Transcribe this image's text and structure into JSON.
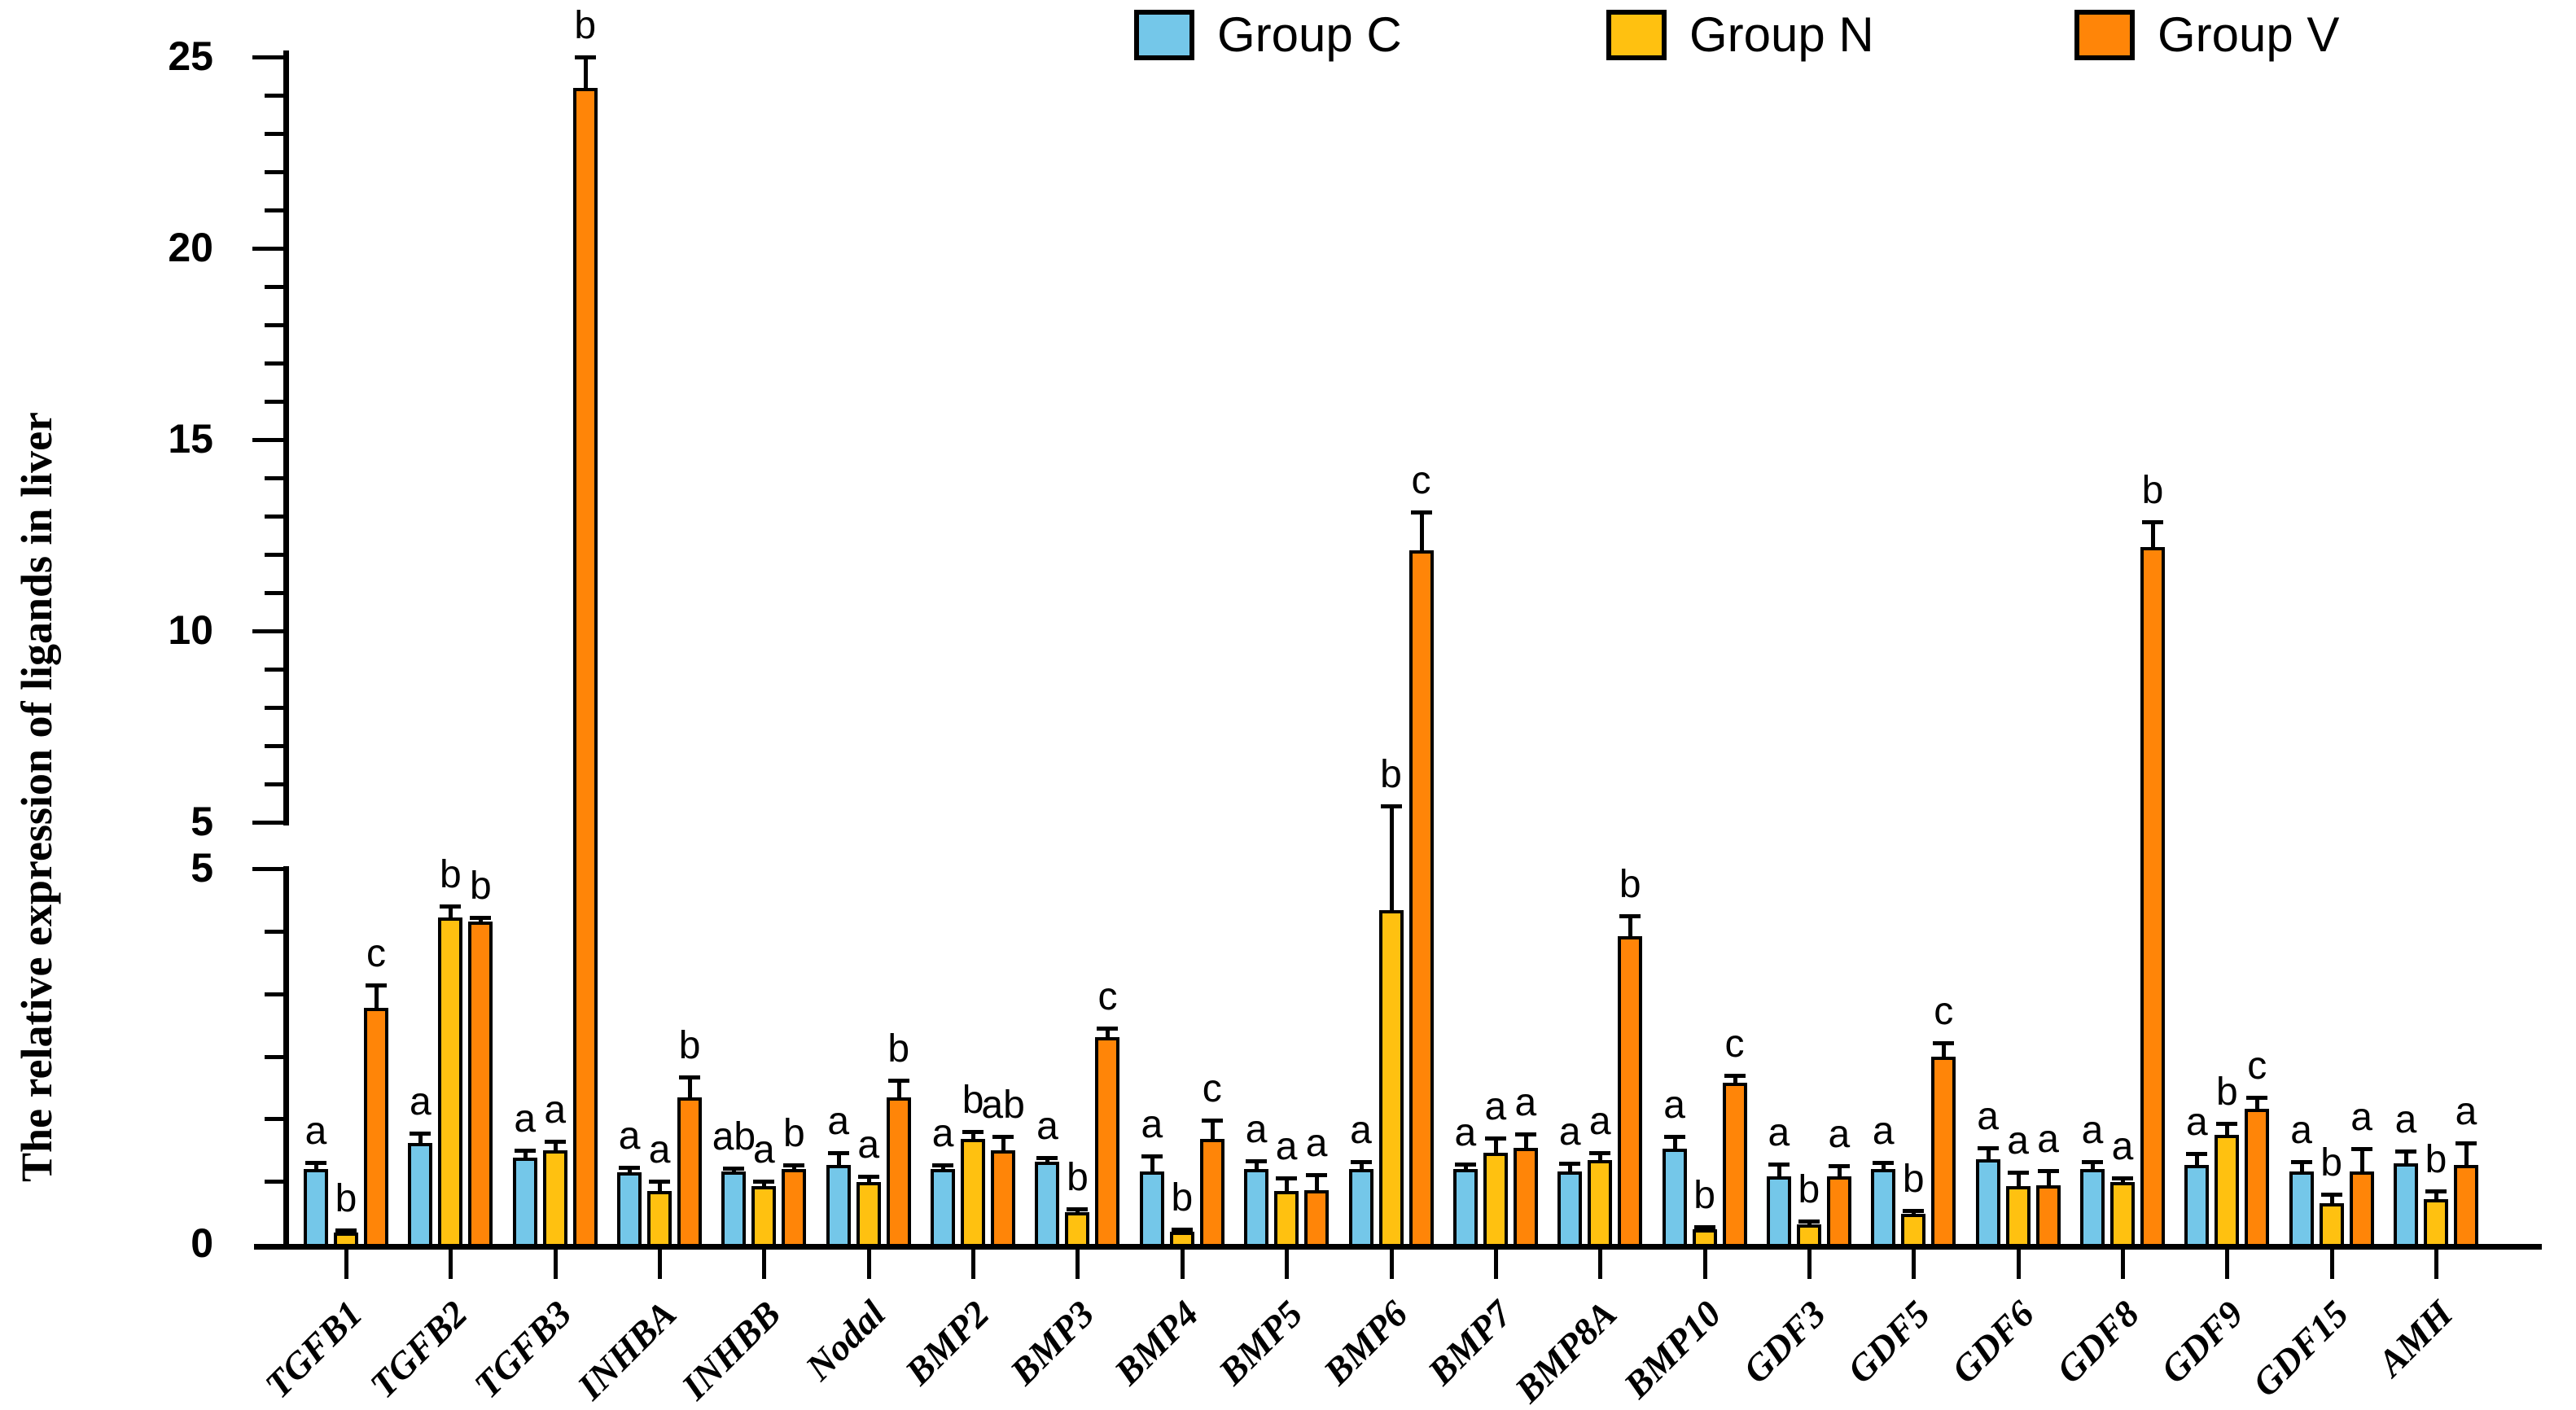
{
  "figure": {
    "background": "#ffffff"
  },
  "legend": {
    "items": [
      {
        "label": "Group C",
        "color": "#74C7E9"
      },
      {
        "label": "Group N",
        "color": "#FFC110"
      },
      {
        "label": "Group V",
        "color": "#FF8508"
      }
    ]
  },
  "chart_data": {
    "type": "bar",
    "title": "",
    "ylabel": "The relative expression of ligands in liver",
    "xlabel": "",
    "broken_y_axis": true,
    "upper_axis": {
      "range": [
        5,
        25
      ],
      "major_ticks": [
        5,
        10,
        15,
        20,
        25
      ],
      "minor_tick_step": 1
    },
    "lower_axis": {
      "range": [
        0,
        5
      ],
      "labeled_ticks": [
        0,
        5
      ]
    },
    "legend_position": "top",
    "grid": false,
    "categories": [
      "TGFB1",
      "TGFB2",
      "TGFB3",
      "INHBA",
      "INHBB",
      "Nodal",
      "BMP2",
      "BMP3",
      "BMP4",
      "BMP5",
      "BMP6",
      "BMP7",
      "BMP8A",
      "BMP10",
      "GDF3",
      "GDF5",
      "GDF6",
      "GDF8",
      "GDF9",
      "GDF15",
      "AMH"
    ],
    "series": [
      {
        "name": "Group C",
        "color": "#74C7E9",
        "values": [
          1.0,
          1.35,
          1.15,
          0.95,
          0.97,
          1.05,
          1.0,
          1.1,
          0.97,
          1.0,
          1.0,
          1.0,
          0.97,
          1.27,
          0.9,
          1.0,
          1.13,
          1.0,
          1.05,
          0.97,
          1.07
        ],
        "errors": [
          0.08,
          0.12,
          0.1,
          0.07,
          0.04,
          0.16,
          0.05,
          0.05,
          0.2,
          0.11,
          0.1,
          0.06,
          0.1,
          0.16,
          0.16,
          0.08,
          0.15,
          0.1,
          0.15,
          0.13,
          0.17
        ],
        "letters": [
          "a",
          "a",
          "a",
          "a",
          "ab",
          "a",
          "a",
          "a",
          "a",
          "a",
          "a",
          "a",
          "a",
          "a",
          "a",
          "a",
          "a",
          "a",
          "a",
          "a",
          "a"
        ]
      },
      {
        "name": "Group N",
        "color": "#FFC110",
        "values": [
          0.15,
          4.35,
          1.25,
          0.7,
          0.77,
          0.82,
          1.4,
          0.42,
          0.16,
          0.7,
          4.45,
          1.22,
          1.12,
          0.2,
          0.26,
          0.4,
          0.77,
          0.82,
          1.45,
          0.54,
          0.6
        ],
        "errors": [
          0.03,
          0.15,
          0.12,
          0.13,
          0.07,
          0.08,
          0.1,
          0.05,
          0.03,
          0.18,
          0.98,
          0.19,
          0.1,
          0.03,
          0.04,
          0.05,
          0.18,
          0.06,
          0.15,
          0.12,
          0.11
        ],
        "letters": [
          "b",
          "b",
          "a",
          "a",
          "a",
          "a",
          "b",
          "b",
          "b",
          "a",
          "b",
          "a",
          "a",
          "b",
          "b",
          "b",
          "a",
          "a",
          "b",
          "b",
          "b"
        ]
      },
      {
        "name": "Group V",
        "color": "#FF8508",
        "values": [
          3.15,
          4.3,
          24.2,
          1.95,
          1.0,
          1.95,
          1.25,
          2.75,
          1.4,
          0.72,
          12.1,
          1.28,
          4.1,
          2.15,
          0.9,
          2.5,
          0.78,
          12.2,
          1.8,
          0.97,
          1.05
        ],
        "errors": [
          0.3,
          0.05,
          0.8,
          0.27,
          0.05,
          0.23,
          0.18,
          0.12,
          0.25,
          0.2,
          1.0,
          0.18,
          0.27,
          0.1,
          0.14,
          0.18,
          0.2,
          0.65,
          0.15,
          0.3,
          0.3
        ],
        "letters": [
          "c",
          "b",
          "b",
          "b",
          "b",
          "b",
          "ab",
          "c",
          "c",
          "a",
          "c",
          "a",
          "b",
          "c",
          "a",
          "c",
          "a",
          "b",
          "c",
          "a",
          "a"
        ]
      }
    ]
  }
}
